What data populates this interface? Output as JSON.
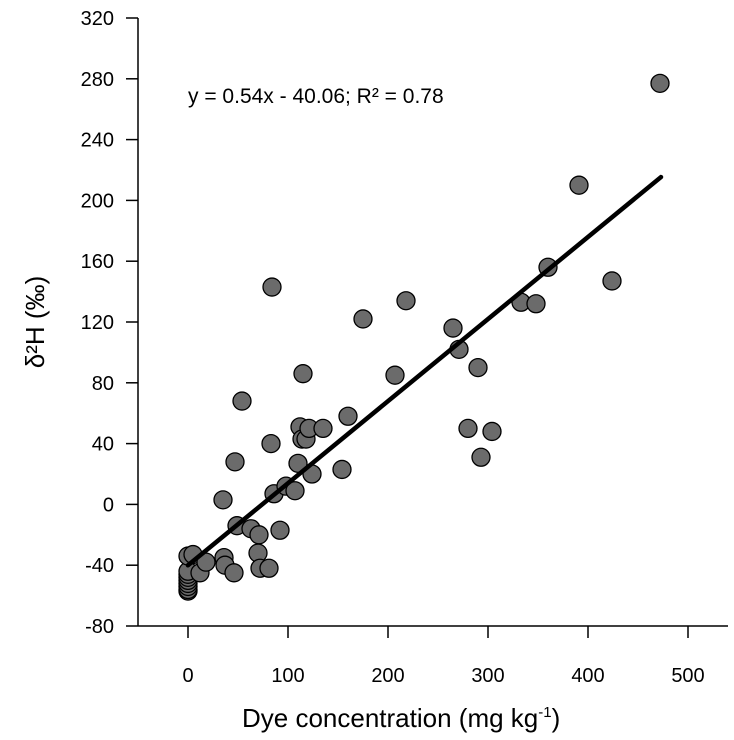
{
  "chart_data": {
    "type": "scatter",
    "title": "",
    "xlabel": "Dye concentration (mg kg",
    "xlabel_sup": "-1",
    "xlabel_tail": ")",
    "ylabel": "δ²H (‰)",
    "annotation": "y = 0.54x - 40.06; R² = 0.78",
    "xlim": [
      -50,
      530
    ],
    "ylim": [
      -80,
      320
    ],
    "xticks": [
      "0",
      "100",
      "200",
      "300",
      "400",
      "500"
    ],
    "yticks": [
      "-80",
      "-40",
      "0",
      "40",
      "80",
      "120",
      "160",
      "200",
      "240",
      "280",
      "320"
    ],
    "grid": false,
    "marker_color": "#6b6b6b",
    "line_color": "#000000",
    "fit": {
      "slope": 0.54,
      "intercept": -40.06,
      "x_range": [
        0,
        473
      ]
    },
    "points": [
      [
        0,
        -57
      ],
      [
        0,
        -56
      ],
      [
        0,
        -54
      ],
      [
        0,
        -52
      ],
      [
        0,
        -50
      ],
      [
        0,
        -48
      ],
      [
        0,
        -46
      ],
      [
        0,
        -44
      ],
      [
        0,
        -34
      ],
      [
        5,
        -33
      ],
      [
        12,
        -45
      ],
      [
        18,
        -38
      ],
      [
        35,
        3
      ],
      [
        36,
        -35
      ],
      [
        37,
        -40
      ],
      [
        46,
        -45
      ],
      [
        47,
        28
      ],
      [
        49,
        -14
      ],
      [
        54,
        68
      ],
      [
        63,
        -16
      ],
      [
        70,
        -32
      ],
      [
        71,
        -20
      ],
      [
        72,
        -42
      ],
      [
        81,
        -42
      ],
      [
        83,
        40
      ],
      [
        84,
        143
      ],
      [
        86,
        7
      ],
      [
        92,
        -17
      ],
      [
        98,
        12
      ],
      [
        107,
        9
      ],
      [
        110,
        27
      ],
      [
        112,
        51
      ],
      [
        114,
        43
      ],
      [
        115,
        86
      ],
      [
        118,
        43
      ],
      [
        121,
        50
      ],
      [
        124,
        20
      ],
      [
        135,
        50
      ],
      [
        154,
        23
      ],
      [
        160,
        58
      ],
      [
        175,
        122
      ],
      [
        207,
        85
      ],
      [
        218,
        134
      ],
      [
        265,
        116
      ],
      [
        271,
        102
      ],
      [
        280,
        50
      ],
      [
        290,
        90
      ],
      [
        293,
        31
      ],
      [
        304,
        48
      ],
      [
        333,
        133
      ],
      [
        348,
        132
      ],
      [
        360,
        156
      ],
      [
        391,
        210
      ],
      [
        424,
        147
      ],
      [
        472,
        277
      ]
    ]
  }
}
